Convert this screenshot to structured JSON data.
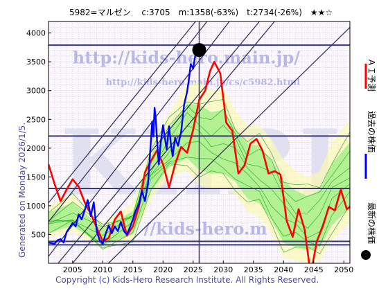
{
  "chart_data": {
    "type": "line",
    "title": "5982=マルゼン　 c:3705　m:1358(-63%)　t:2734(-26%)　★★☆",
    "side_label": "Generated on Monday 2026/1/5.",
    "footer": "Copyright (c) Kids-Hero Research Institute. All Rights Reserved.",
    "watermark_url": "http://kids-hero.main.jp/",
    "watermark_url2": "http://kids-hero.main.jp/cs/c5982.html",
    "watermark_big": "KHRI",
    "watermark_bottom": "//kids-hero.m",
    "legend": [
      "ＡＩ予測",
      "過去の株価",
      "最新の株価"
    ],
    "xlim": [
      2001,
      2051
    ],
    "ylim": [
      0,
      4200
    ],
    "xticks": [
      2005,
      2010,
      2015,
      2020,
      2025,
      2030,
      2035,
      2040,
      2045,
      2050
    ],
    "yticks": [
      500,
      1000,
      1500,
      2000,
      2500,
      3000,
      3500,
      4000
    ],
    "current": {
      "x": 2026.0,
      "y": 3705
    },
    "hlines": [
      3790,
      2210,
      1300,
      380,
      320
    ],
    "vline": 2026.0,
    "ai_forecast": [
      [
        2001,
        1720
      ],
      [
        2002,
        1380
      ],
      [
        2003,
        1080
      ],
      [
        2004,
        1280
      ],
      [
        2005,
        1460
      ],
      [
        2006,
        1330
      ],
      [
        2007,
        1060
      ],
      [
        2008,
        860
      ],
      [
        2009,
        620
      ],
      [
        2010,
        380
      ],
      [
        2011,
        440
      ],
      [
        2012,
        760
      ],
      [
        2013,
        900
      ],
      [
        2014,
        480
      ],
      [
        2015,
        640
      ],
      [
        2016,
        980
      ],
      [
        2017,
        1580
      ],
      [
        2018,
        1780
      ],
      [
        2019,
        1960
      ],
      [
        2020,
        1720
      ],
      [
        2021,
        1320
      ],
      [
        2022,
        1720
      ],
      [
        2023,
        2020
      ],
      [
        2024,
        1920
      ],
      [
        2025,
        2320
      ],
      [
        2026,
        2840
      ],
      [
        2027,
        3000
      ],
      [
        2027.8,
        3340
      ],
      [
        2028.5,
        3500
      ],
      [
        2029.5,
        3300
      ],
      [
        2030.5,
        2440
      ],
      [
        2031.5,
        2300
      ],
      [
        2032.5,
        1560
      ],
      [
        2033.5,
        1700
      ],
      [
        2034.5,
        2080
      ],
      [
        2035.5,
        2160
      ],
      [
        2036.5,
        1960
      ],
      [
        2037.5,
        1560
      ],
      [
        2038.5,
        1600
      ],
      [
        2039.5,
        1540
      ],
      [
        2040.5,
        740
      ],
      [
        2041.5,
        460
      ],
      [
        2042.5,
        940
      ],
      [
        2043.5,
        580
      ],
      [
        2044.5,
        -200
      ],
      [
        2045.5,
        380
      ],
      [
        2046.5,
        640
      ],
      [
        2047.5,
        980
      ],
      [
        2048.5,
        920
      ],
      [
        2049.5,
        1280
      ],
      [
        2050.5,
        940
      ],
      [
        2051,
        980
      ]
    ],
    "past_price": [
      [
        2001,
        360
      ],
      [
        2002,
        340
      ],
      [
        2002.5,
        400
      ],
      [
        2003,
        420
      ],
      [
        2003.5,
        360
      ],
      [
        2004,
        540
      ],
      [
        2004.5,
        620
      ],
      [
        2005,
        700
      ],
      [
        2005.5,
        640
      ],
      [
        2006,
        850
      ],
      [
        2006.5,
        760
      ],
      [
        2007,
        920
      ],
      [
        2007.5,
        1100
      ],
      [
        2008,
        820
      ],
      [
        2008.5,
        1060
      ],
      [
        2009,
        560
      ],
      [
        2009.5,
        400
      ],
      [
        2010,
        340
      ],
      [
        2010.5,
        520
      ],
      [
        2011,
        660
      ],
      [
        2011.5,
        520
      ],
      [
        2012,
        640
      ],
      [
        2012.5,
        560
      ],
      [
        2013,
        720
      ],
      [
        2013.5,
        560
      ],
      [
        2014,
        500
      ],
      [
        2014.5,
        620
      ],
      [
        2015,
        760
      ],
      [
        2015.5,
        920
      ],
      [
        2016,
        1020
      ],
      [
        2016.5,
        1260
      ],
      [
        2017,
        1080
      ],
      [
        2017.5,
        1380
      ],
      [
        2018,
        2140
      ],
      [
        2018.2,
        2460
      ],
      [
        2018.4,
        2200
      ],
      [
        2018.6,
        2700
      ],
      [
        2018.8,
        2500
      ],
      [
        2019,
        2140
      ],
      [
        2019.3,
        1720
      ],
      [
        2019.6,
        2080
      ],
      [
        2020,
        2400
      ],
      [
        2020.3,
        2180
      ],
      [
        2020.6,
        1980
      ],
      [
        2021,
        2380
      ],
      [
        2021.3,
        2080
      ],
      [
        2021.6,
        1860
      ],
      [
        2022,
        2180
      ],
      [
        2022.5,
        2040
      ],
      [
        2023,
        2280
      ],
      [
        2023.5,
        2760
      ],
      [
        2024,
        2980
      ],
      [
        2024.3,
        3200
      ],
      [
        2024.6,
        3460
      ],
      [
        2025,
        3380
      ],
      [
        2025.3,
        3580
      ],
      [
        2025.6,
        3660
      ],
      [
        2026,
        3705
      ]
    ],
    "band": {
      "x": [
        2001,
        2005,
        2010,
        2015,
        2018,
        2021,
        2024,
        2026,
        2028,
        2030,
        2032,
        2034,
        2036,
        2038,
        2040,
        2042,
        2044,
        2046,
        2048,
        2051
      ],
      "upper": [
        1000,
        1200,
        700,
        1050,
        2100,
        2600,
        3100,
        3150,
        3000,
        3050,
        2650,
        2400,
        2400,
        2150,
        1800,
        1600,
        1500,
        1600,
        2100,
        2500
      ],
      "lower": [
        450,
        550,
        250,
        400,
        1100,
        1500,
        1600,
        1350,
        1300,
        1300,
        1200,
        900,
        800,
        500,
        100,
        50,
        0,
        50,
        400,
        700
      ]
    },
    "trend_lines": [
      {
        "x1": 2001,
        "y1": 1050,
        "x2": 2025.4,
        "y2": 4200
      },
      {
        "x1": 2001,
        "y1": 720,
        "x2": 2027.3,
        "y2": 4200
      },
      {
        "x1": 2001,
        "y1": 120,
        "x2": 2031,
        "y2": 4200
      },
      {
        "x1": 2001,
        "y1": -200,
        "x2": 2036,
        "y2": 4200
      },
      {
        "x1": 2001,
        "y1": -500,
        "x2": 2038.5,
        "y2": 4200
      },
      {
        "x1": 2008,
        "y1": -300,
        "x2": 2052,
        "y2": 4200
      }
    ],
    "colors": {
      "ai": "#ff0000",
      "past": "#0000ff",
      "current": "#000000",
      "band_fill": "#a6f08a",
      "band_fill2": "#fbfba8",
      "band_line": "#22aa22",
      "hline": "#3a3a78",
      "trend": "#34345e",
      "grid": "#aaaacc"
    }
  }
}
